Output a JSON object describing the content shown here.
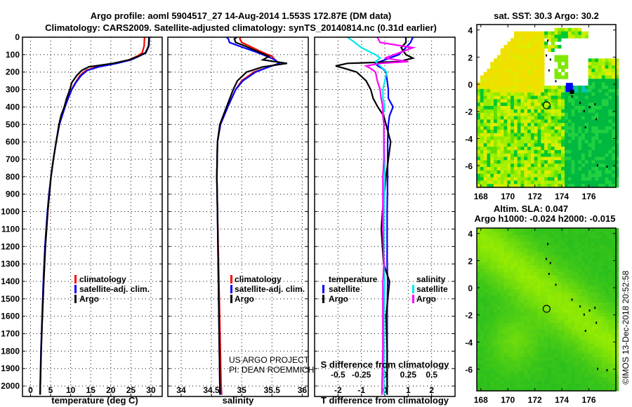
{
  "header": {
    "title_line1": "Argo profile: aoml 5904517_27 14-Aug-2014 1.553S 172.87E (DM data)",
    "title_line2": "Climatology: CARS2009. Satellite-adjusted climatology: synTS_20140814.nc (0.31d earlier)"
  },
  "credit": {
    "line1": "US ARGO PROJECT",
    "line2": "PI: DEAN ROEMMICH"
  },
  "timestamp": "©IMOS 13-Dec-2018 20:52:58",
  "colors": {
    "climatology": "#ff0000",
    "satellite": "#0000ff",
    "argo": "#000000",
    "sal_satellite": "#00e8e8",
    "sal_argo": "#ff00ff"
  },
  "chart_data": [
    {
      "type": "line",
      "id": "temperature",
      "xlabel": "temperature (deg C)",
      "ylabel": "depth",
      "xlim": [
        -2,
        32.8
      ],
      "ylim": [
        2060,
        0
      ],
      "xticks": [
        0,
        5,
        10,
        15,
        20,
        25,
        30
      ],
      "yticks": [
        0,
        100,
        200,
        300,
        400,
        500,
        600,
        700,
        800,
        900,
        1000,
        1100,
        1200,
        1300,
        1400,
        1500,
        1600,
        1700,
        1800,
        1900,
        2000
      ],
      "grid": true,
      "legend": [
        "climatology",
        "satellite-adj. clim.",
        "Argo"
      ],
      "legend_placement": "bottom-right",
      "depth": [
        0,
        50,
        90,
        110,
        130,
        150,
        170,
        190,
        220,
        260,
        300,
        350,
        400,
        450,
        500,
        600,
        700,
        800,
        900,
        1000,
        1200,
        1400,
        1600,
        1800,
        2000,
        2050
      ],
      "series": [
        {
          "name": "climatology",
          "color": "#ff0000",
          "values": [
            28.4,
            28.3,
            27.8,
            26.5,
            24.5,
            21,
            16.5,
            13.8,
            12.3,
            11.2,
            10.2,
            9.3,
            8.5,
            7.8,
            7.2,
            6.4,
            5.7,
            5.1,
            4.7,
            4.3,
            3.7,
            3.3,
            2.95,
            2.65,
            2.45,
            2.4
          ]
        },
        {
          "name": "satellite-adj. clim.",
          "color": "#0000ff",
          "values": [
            29.6,
            29.5,
            28.7,
            27,
            25,
            21.5,
            17,
            14.2,
            12.6,
            11.3,
            10.3,
            9.4,
            8.6,
            7.9,
            7.2,
            6.4,
            5.7,
            5.1,
            4.6,
            4.2,
            3.6,
            3.2,
            2.9,
            2.6,
            2.4,
            2.35
          ]
        },
        {
          "name": "Argo",
          "color": "#000000",
          "values": [
            29.5,
            29.4,
            28.6,
            26.8,
            24.6,
            20.5,
            14.5,
            12.8,
            11.5,
            10.3,
            9.8,
            9.0,
            8.4,
            7.6,
            7.1,
            6.4,
            5.7,
            5.1,
            4.7,
            4.3,
            3.7,
            3.3,
            2.95,
            2.65,
            2.45,
            2.42
          ]
        }
      ]
    },
    {
      "type": "line",
      "id": "salinity",
      "xlabel": "salinity",
      "xlim": [
        33.78,
        36.1
      ],
      "ylim": [
        2060,
        0
      ],
      "xticks": [
        34,
        34.5,
        35,
        35.5,
        36
      ],
      "grid": true,
      "legend": [
        "climatology",
        "satellite-adj. clim.",
        "Argo"
      ],
      "legend_placement": "bottom-right",
      "depth": [
        0,
        10,
        30,
        50,
        80,
        110,
        130,
        150,
        170,
        200,
        250,
        300,
        400,
        500,
        600,
        800,
        1000,
        1500,
        2000,
        2050
      ],
      "series": [
        {
          "name": "climatology",
          "color": "#ff0000",
          "values": [
            34.98,
            34.97,
            35.0,
            35.12,
            35.3,
            35.5,
            35.55,
            35.62,
            35.45,
            35.2,
            35.0,
            34.9,
            34.77,
            34.65,
            34.6,
            34.59,
            34.6,
            34.63,
            34.66,
            34.67
          ]
        },
        {
          "name": "satellite-adj. clim.",
          "color": "#0000ff",
          "values": [
            34.75,
            34.78,
            34.8,
            34.95,
            35.2,
            35.42,
            35.55,
            35.62,
            35.45,
            35.23,
            35.02,
            34.9,
            34.77,
            34.65,
            34.6,
            34.59,
            34.6,
            34.62,
            34.64,
            34.65
          ]
        },
        {
          "name": "Argo",
          "color": "#000000",
          "values": [
            34.92,
            34.88,
            34.9,
            35.05,
            35.25,
            35.45,
            35.35,
            35.75,
            35.35,
            35.08,
            34.93,
            34.86,
            34.75,
            34.64,
            34.6,
            34.59,
            34.6,
            34.62,
            34.64,
            34.64
          ]
        }
      ]
    },
    {
      "type": "line",
      "id": "differences",
      "xlabel": "T difference from climatology",
      "x2label": "S difference from climatology",
      "xlim": [
        -3,
        3
      ],
      "x2lim": [
        -0.75,
        0.75
      ],
      "ylim": [
        2060,
        0
      ],
      "xticks": [
        -2,
        -1,
        0,
        1,
        2
      ],
      "x2ticks": [
        "-0.5",
        "-0.25",
        "0",
        "0.25",
        "0.5"
      ],
      "x2tick_values": [
        -0.5,
        -0.25,
        0,
        0.25,
        0.5
      ],
      "grid": true,
      "legend_temperature_title": "temperature",
      "legend_salinity_title": "salinity",
      "legend": [
        "satellite",
        "Argo",
        "satellite",
        "Argo"
      ],
      "depth": [
        0,
        30,
        60,
        100,
        120,
        140,
        150,
        165,
        180,
        200,
        250,
        300,
        350,
        400,
        450,
        500,
        600,
        700,
        800,
        1000,
        1100,
        1300,
        1400,
        1600,
        1800,
        2000,
        2050
      ],
      "series": [
        {
          "name": "T satellite",
          "axis": "T",
          "color": "#0000ff",
          "values": [
            1.2,
            1.1,
            0.9,
            0.6,
            0.2,
            -0.2,
            -0.4,
            -0.3,
            -0.1,
            0.05,
            0.1,
            0.15,
            0.15,
            0.35,
            0.2,
            0.15,
            0.12,
            0.12,
            0.12,
            0.1,
            0.1,
            0.1,
            0.12,
            0.1,
            0.1,
            0.1,
            0.1
          ]
        },
        {
          "name": "T Argo",
          "axis": "T",
          "color": "#000000",
          "values": [
            0.9,
            0.9,
            0.7,
            0.9,
            1.2,
            0.6,
            -1.6,
            -2.1,
            -1.7,
            -1.2,
            -0.8,
            -0.6,
            -0.5,
            -0.3,
            -0.05,
            0.05,
            0.25,
            0.15,
            0.05,
            -0.1,
            -0.15,
            -0.05,
            0.2,
            0.05,
            0.1,
            0.1,
            0.1
          ]
        },
        {
          "name": "S satellite",
          "axis": "S",
          "color": "#00e8e8",
          "values": [
            -0.4,
            -0.32,
            -0.25,
            -0.1,
            -0.05,
            -0.1,
            -0.08,
            -0.05,
            -0.02,
            0.02,
            0.0,
            -0.02,
            -0.02,
            0.0,
            -0.02,
            -0.01,
            -0.01,
            0.0,
            0.0,
            -0.01,
            -0.01,
            -0.01,
            0.0,
            -0.01,
            -0.01,
            -0.01,
            -0.01
          ]
        },
        {
          "name": "S Argo",
          "axis": "S",
          "color": "#ff00ff",
          "values": [
            -0.08,
            -0.05,
            0.3,
            0.1,
            0.0,
            0.25,
            -0.05,
            -0.2,
            -0.15,
            -0.1,
            -0.08,
            -0.05,
            -0.04,
            -0.02,
            -0.02,
            -0.01,
            -0.01,
            -0.01,
            -0.02,
            -0.02,
            -0.02,
            -0.01,
            -0.02,
            -0.02,
            -0.02,
            -0.03,
            -0.03
          ]
        }
      ]
    },
    {
      "type": "heatmap",
      "id": "sst-map",
      "title": "sat. SST: 30.3 Argo: 30.2",
      "xlim": [
        167.7,
        178
      ],
      "ylim": [
        -7.6,
        4.4
      ],
      "xticks": [
        168,
        170,
        172,
        174,
        176
      ],
      "yticks": [
        4,
        2,
        0,
        -2,
        -4,
        -6
      ],
      "argo_position": [
        172.87,
        -1.553
      ]
    },
    {
      "type": "heatmap",
      "id": "sla-map",
      "title_line1": "Altim. SLA: 0.047",
      "title_line2": "Argo h1000: -0.024 h2000: -0.015",
      "xlim": [
        167.7,
        178
      ],
      "ylim": [
        -7.6,
        4.4
      ],
      "xticks": [
        168,
        170,
        172,
        174,
        176
      ],
      "yticks": [
        4,
        2,
        0,
        -2,
        -4,
        -6
      ],
      "argo_position": [
        172.87,
        -1.553
      ]
    }
  ]
}
